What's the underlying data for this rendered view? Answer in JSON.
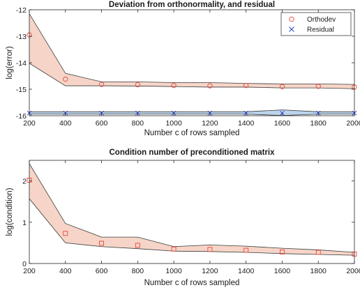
{
  "chart_data": [
    {
      "type": "line",
      "title": "Deviation from orthonormality, and residual",
      "xlabel": "Number c of rows sampled",
      "ylabel": "log(error)",
      "xlim": [
        200,
        2000
      ],
      "ylim": [
        -16,
        -12
      ],
      "xticks": [
        200,
        400,
        600,
        800,
        1000,
        1200,
        1400,
        1600,
        1800,
        2000
      ],
      "yticks": [
        -16,
        -15,
        -14,
        -13,
        -12
      ],
      "legend_position": "top-right",
      "x": [
        200,
        400,
        600,
        800,
        1000,
        1200,
        1400,
        1600,
        1800,
        2000
      ],
      "series": [
        {
          "name": "Orthodev",
          "marker": "circle",
          "color": "#e8453c",
          "band_color": "#f6d5c8",
          "values": [
            -12.95,
            -14.62,
            -14.82,
            -14.83,
            -14.86,
            -14.87,
            -14.86,
            -14.9,
            -14.89,
            -14.92
          ],
          "upper": [
            -12.15,
            -14.4,
            -14.72,
            -14.72,
            -14.75,
            -14.75,
            -14.78,
            -14.8,
            -14.8,
            -14.82
          ],
          "lower": [
            -14.02,
            -14.87,
            -14.87,
            -14.88,
            -14.9,
            -14.92,
            -14.92,
            -14.95,
            -14.95,
            -14.98
          ]
        },
        {
          "name": "Residual",
          "marker": "x",
          "color": "#2a45c9",
          "band_color": "#bcd4ec",
          "values": [
            -15.9,
            -15.9,
            -15.9,
            -15.9,
            -15.9,
            -15.9,
            -15.9,
            -15.9,
            -15.9,
            -15.9
          ],
          "upper": [
            -15.85,
            -15.85,
            -15.85,
            -15.85,
            -15.85,
            -15.85,
            -15.85,
            -15.78,
            -15.85,
            -15.85
          ],
          "lower": [
            -15.94,
            -15.94,
            -15.94,
            -15.94,
            -15.94,
            -15.94,
            -15.94,
            -15.99,
            -15.94,
            -15.94
          ]
        }
      ]
    },
    {
      "type": "line",
      "title": "Condition number of preconditioned matrix",
      "xlabel": "Number c of rows sampled",
      "ylabel": "log(condition)",
      "xlim": [
        200,
        2000
      ],
      "ylim": [
        0,
        2.5
      ],
      "xticks": [
        200,
        400,
        600,
        800,
        1000,
        1200,
        1400,
        1600,
        1800,
        2000
      ],
      "yticks": [
        0,
        1,
        2
      ],
      "x": [
        200,
        400,
        600,
        800,
        1000,
        1200,
        1400,
        1600,
        1800,
        2000
      ],
      "series": [
        {
          "marker": "square",
          "color": "#e8453c",
          "band_color": "#f6d5c8",
          "values": [
            2.02,
            0.73,
            0.49,
            0.44,
            0.35,
            0.34,
            0.32,
            0.28,
            0.27,
            0.23
          ],
          "upper": [
            2.42,
            0.97,
            0.64,
            0.64,
            0.41,
            0.45,
            0.42,
            0.37,
            0.33,
            0.27
          ],
          "lower": [
            1.57,
            0.5,
            0.41,
            0.36,
            0.3,
            0.29,
            0.27,
            0.24,
            0.22,
            0.2
          ]
        }
      ]
    }
  ]
}
